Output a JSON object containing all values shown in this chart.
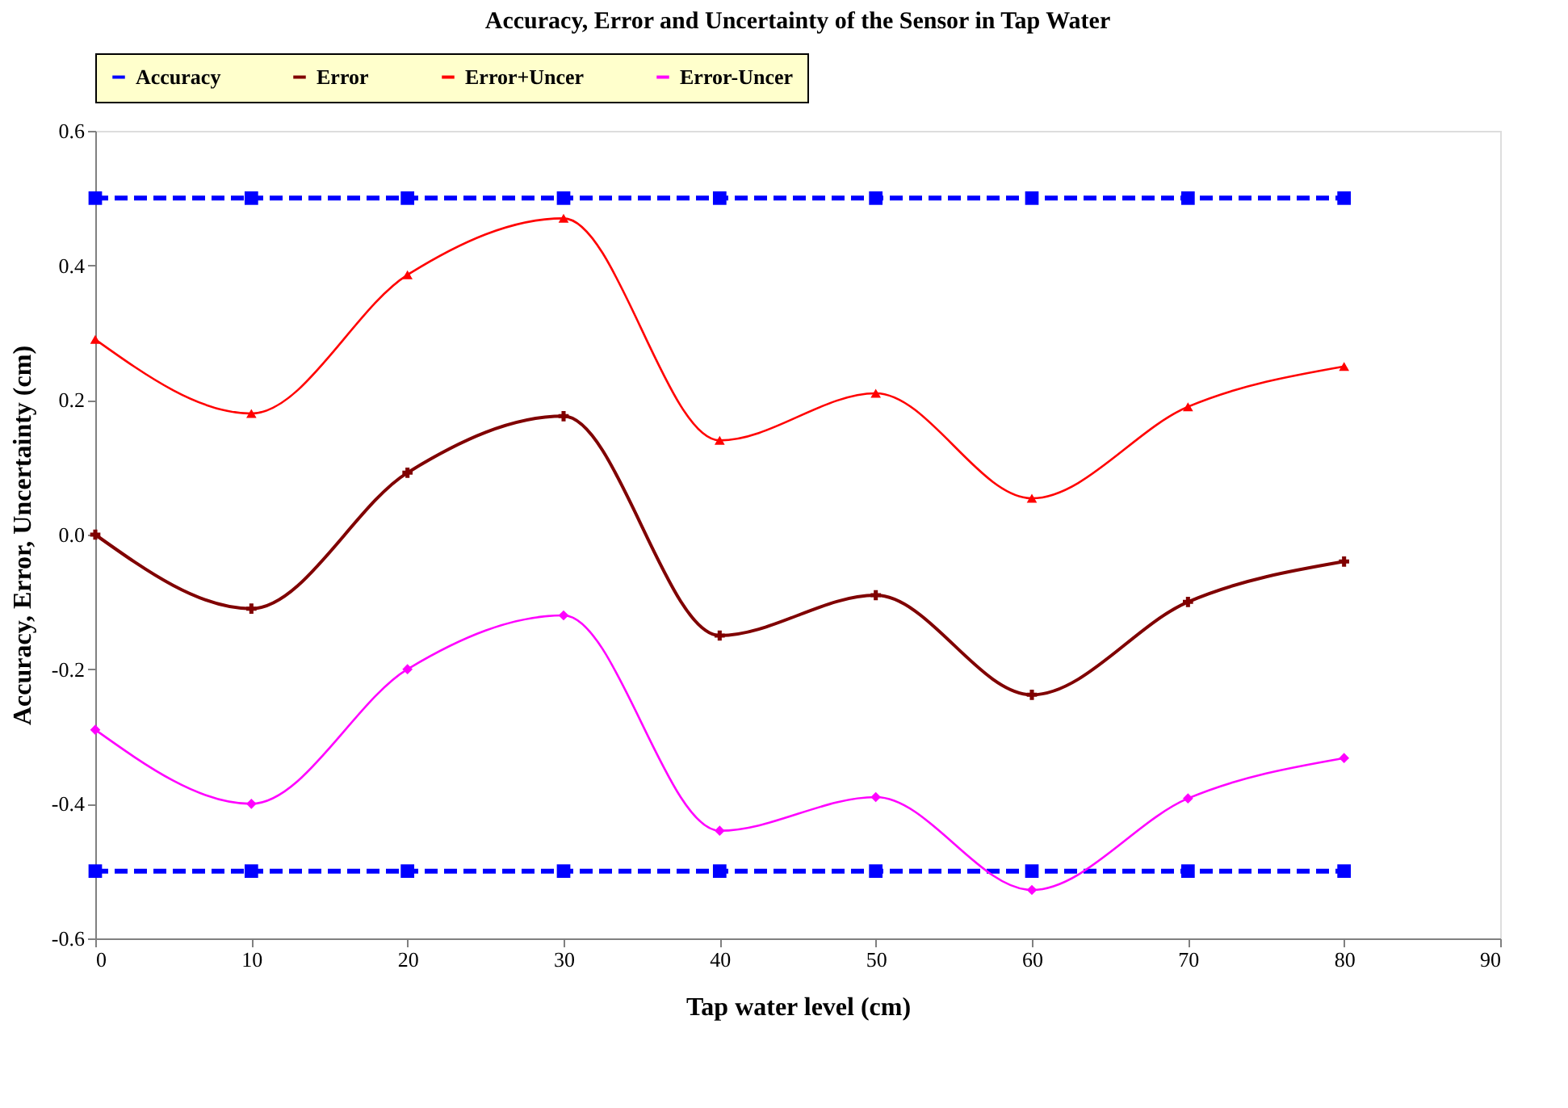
{
  "chart_data": {
    "type": "line",
    "title": "Accuracy, Error and Uncertainty of the Sensor in Tap Water",
    "xlabel": "Tap water level (cm)",
    "ylabel": "Accuracy,  Error,  Uncertainty  (cm)",
    "x": [
      0,
      10,
      20,
      30,
      40,
      50,
      60,
      70,
      80
    ],
    "series": [
      {
        "name": "Accuracy",
        "color": "#0000ff",
        "marker": "square",
        "line_style": "dashed",
        "values": [
          0.5,
          0.5,
          0.5,
          0.5,
          0.5,
          0.5,
          0.5,
          0.5,
          0.5
        ]
      },
      {
        "color": "#0000ff",
        "marker": "square",
        "line_style": "dashed",
        "values": [
          -0.5,
          -0.5,
          -0.5,
          -0.5,
          -0.5,
          -0.5,
          -0.5,
          -0.5,
          -0.5
        ]
      },
      {
        "name": "Error",
        "color": "#800000",
        "marker": "cross",
        "line_style": "solid",
        "values": [
          0,
          -0.11,
          0.092,
          0.176,
          -0.15,
          -0.09,
          -0.238,
          -0.1,
          -0.04
        ]
      },
      {
        "name": "Error+Uncer",
        "color": "#ff0000",
        "marker": "triangle",
        "line_style": "solid",
        "values": [
          0.29,
          0.18,
          0.386,
          0.47,
          0.14,
          0.21,
          0.054,
          0.19,
          0.25
        ]
      },
      {
        "name": "Error-Uncer",
        "color": "#ff00ff",
        "marker": "diamond",
        "line_style": "solid",
        "values": [
          -0.29,
          -0.4,
          -0.2,
          -0.12,
          -0.44,
          -0.39,
          -0.528,
          -0.392,
          -0.332
        ]
      }
    ],
    "xlim": [
      0,
      90
    ],
    "xticks": [
      0,
      10,
      20,
      30,
      40,
      50,
      60,
      70,
      80,
      90
    ],
    "ylim": [
      -0.6,
      0.6
    ],
    "yticks": [
      -0.6,
      -0.4,
      -0.2,
      {
        "value": 0,
        "label": "0.0"
      },
      0.2,
      0.4,
      0.6
    ],
    "grid": false,
    "legend": "top"
  }
}
